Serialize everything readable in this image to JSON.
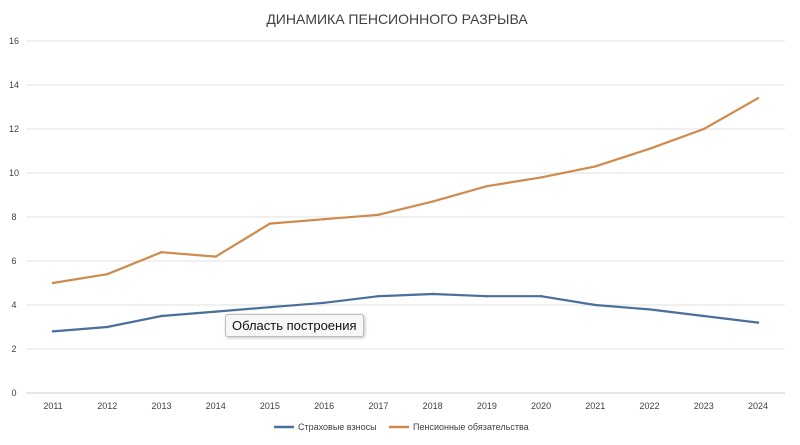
{
  "chart_data": {
    "type": "line",
    "title": "ДИНАМИКА ПЕНСИОННОГО РАЗРЫВА",
    "xlabel": "",
    "ylabel": "",
    "categories": [
      "2011",
      "2012",
      "2013",
      "2014",
      "2015",
      "2016",
      "2017",
      "2018",
      "2019",
      "2020",
      "2021",
      "2022",
      "2023",
      "2024"
    ],
    "ylim": [
      0,
      16
    ],
    "yticks": [
      0,
      2,
      4,
      6,
      8,
      10,
      12,
      14,
      16
    ],
    "grid": true,
    "legend_position": "bottom",
    "series": [
      {
        "name": "Страховые взносы",
        "color": "#4a6f9c",
        "values": [
          2.8,
          3.0,
          3.5,
          3.7,
          3.9,
          4.1,
          4.4,
          4.5,
          4.4,
          4.4,
          4.0,
          3.8,
          3.5,
          3.2
        ]
      },
      {
        "name": "Пенсионные обязательства",
        "color": "#cf8a4c",
        "values": [
          5.0,
          5.4,
          6.4,
          6.2,
          7.7,
          7.9,
          8.1,
          8.7,
          9.4,
          9.8,
          10.3,
          11.1,
          12.0,
          13.4
        ]
      }
    ]
  },
  "tooltip": {
    "text": "Область построения"
  }
}
